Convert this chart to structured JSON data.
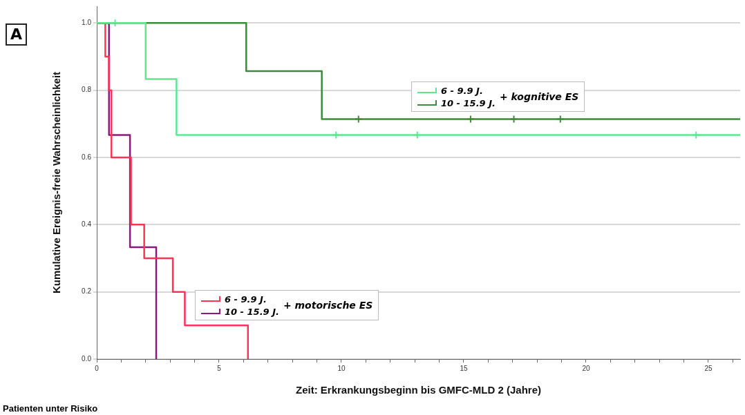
{
  "chart_data": {
    "type": "step",
    "xlabel": "Zeit: Erkrankungsbeginn bis GMFC-MLD 2 (Jahre)",
    "ylabel": "Kumulative Ereignis-freie Wahrscheinlichkeit",
    "annotations": [
      "+ kognitive ES",
      "+ motorische ES",
      "A",
      "Patienten unter Risiko"
    ],
    "xlim": [
      0,
      26.3
    ],
    "ylim": [
      0,
      1.05
    ],
    "xticks": [
      0,
      {
        "value": 1,
        "label": null
      },
      {
        "value": 2,
        "label": null
      },
      {
        "value": 3,
        "label": null
      },
      {
        "value": 4,
        "label": null
      },
      5,
      {
        "value": 6,
        "label": null
      },
      {
        "value": 7,
        "label": null
      },
      {
        "value": 8,
        "label": null
      },
      {
        "value": 9,
        "label": null
      },
      10,
      {
        "value": 11,
        "label": null
      },
      {
        "value": 12,
        "label": null
      },
      {
        "value": 13,
        "label": null
      },
      {
        "value": 14,
        "label": null
      },
      15,
      {
        "value": 16,
        "label": null
      },
      {
        "value": 17,
        "label": null
      },
      {
        "value": 18,
        "label": null
      },
      {
        "value": 19,
        "label": null
      },
      20,
      {
        "value": 21,
        "label": null
      },
      {
        "value": 22,
        "label": null
      },
      {
        "value": 23,
        "label": null
      },
      {
        "value": 24,
        "label": null
      },
      25,
      {
        "value": 26,
        "label": null
      }
    ],
    "yticks": [
      {
        "value": 0,
        "label": "0.0"
      },
      {
        "value": 0.2,
        "label": "0.2"
      },
      {
        "value": 0.4,
        "label": "0.4"
      },
      {
        "value": 0.6,
        "label": "0.6"
      },
      {
        "value": 0.8,
        "label": "0.8"
      },
      {
        "value": 1,
        "label": "1.0"
      }
    ],
    "grid": "y",
    "legend": "center",
    "marker": "none",
    "line_style": "solid",
    "series": [
      {
        "name": "6 - 9.9 J.",
        "color": "#5ee88e",
        "x": [
          0,
          2.0,
          3.26,
          26.3
        ],
        "values": [
          1,
          0.833,
          0.667,
          0.667
        ]
      },
      {
        "name": "10 - 15.9 J.",
        "color": "#3a8c3a",
        "x": [
          0,
          6.11,
          9.2,
          26.3
        ],
        "values": [
          1,
          0.857,
          0.714,
          0.714
        ]
      },
      {
        "name": "6 - 9.9 J.",
        "color": "#ff3355",
        "x": [
          0,
          0.35,
          0.5,
          0.6,
          1.4,
          1.94,
          3.11,
          3.6,
          6.18
        ],
        "values": [
          1,
          0.9,
          0.8,
          0.6,
          0.4,
          0.3,
          0.2,
          0.1,
          0
        ]
      },
      {
        "name": "10 - 15.9 J.",
        "color": "#8b1a7a",
        "x": [
          0,
          0.5,
          1.36,
          2.43
        ],
        "values": [
          1,
          0.667,
          0.333,
          0
        ]
      },
      {
        "type": "scatter",
        "marker": "cross",
        "color": "#5ee88e",
        "x": [
          0.75,
          9.78,
          13.1,
          24.5
        ],
        "values": [
          1,
          0.667,
          0.667,
          0.667
        ]
      },
      {
        "type": "scatter",
        "marker": "cross",
        "color": "#3a8c3a",
        "x": [
          10.7,
          15.28,
          17.05,
          18.95
        ],
        "values": [
          0.714,
          0.714,
          0.714,
          0.714
        ]
      }
    ]
  }
}
